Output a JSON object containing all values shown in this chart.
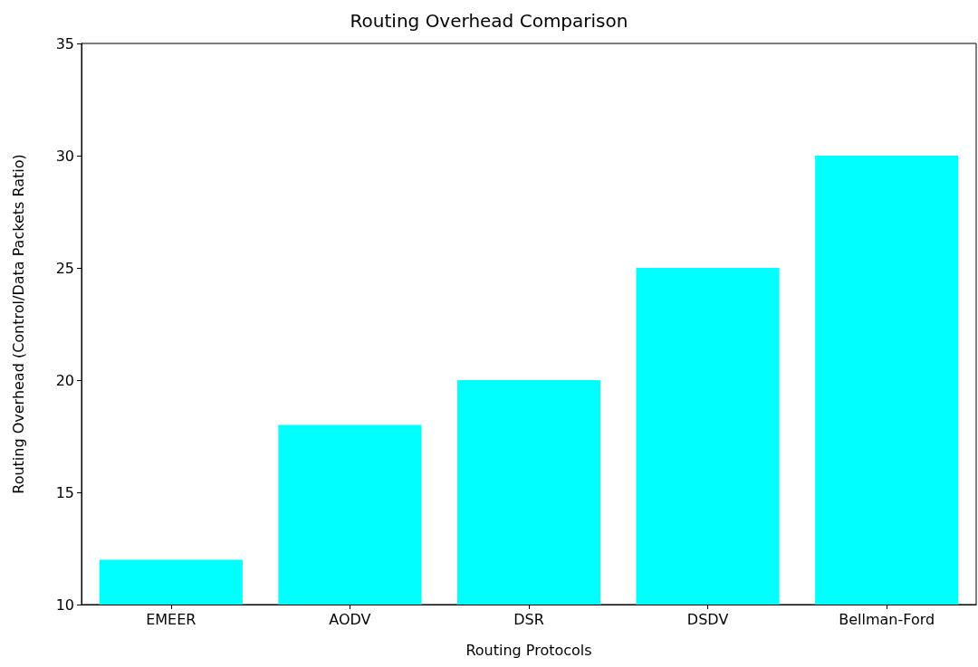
{
  "chart_data": {
    "type": "bar",
    "title": "Routing Overhead Comparison",
    "xlabel": "Routing Protocols",
    "ylabel": "Routing Overhead (Control/Data Packets Ratio)",
    "categories": [
      "EMEER",
      "AODV",
      "DSR",
      "DSDV",
      "Bellman-Ford"
    ],
    "values": [
      12,
      18,
      20,
      25,
      30
    ],
    "color": "#00ffff",
    "ylim": [
      10,
      35
    ],
    "yticks": [
      10,
      15,
      20,
      25,
      30,
      35
    ],
    "grid": false
  }
}
